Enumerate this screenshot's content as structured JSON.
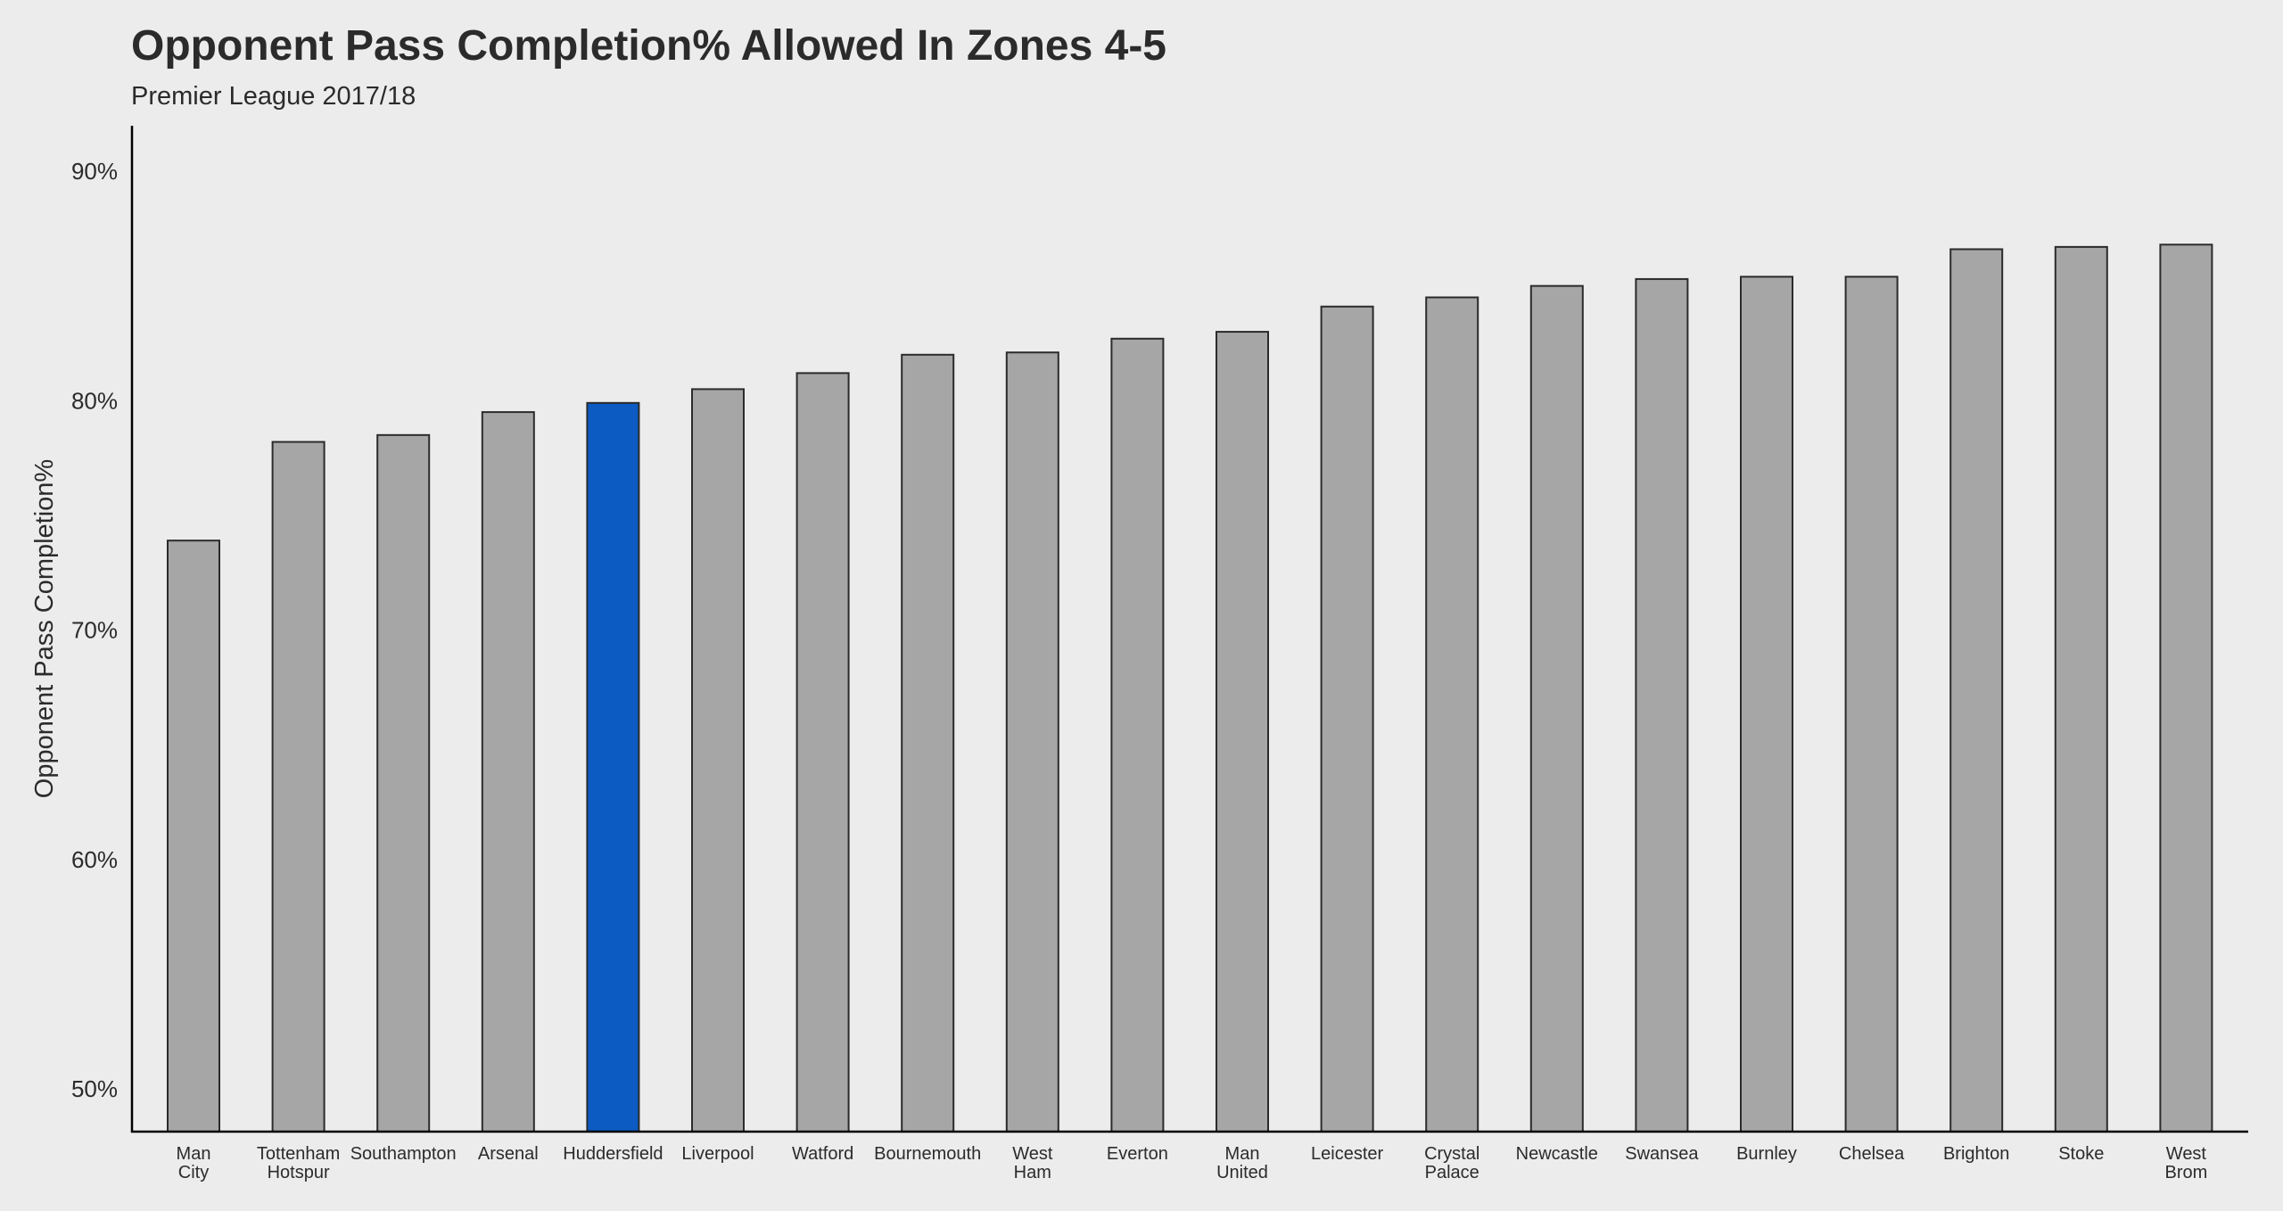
{
  "chart_data": {
    "type": "bar",
    "title": "Opponent Pass Completion% Allowed In Zones 4-5",
    "subtitle": "Premier League 2017/18",
    "xlabel": "",
    "ylabel": "Opponent Pass Completion%",
    "ylim": [
      48,
      92
    ],
    "yticks": [
      50,
      60,
      70,
      80,
      90
    ],
    "ytick_labels": [
      "50%",
      "60%",
      "70%",
      "80%",
      "90%"
    ],
    "grid": false,
    "categories": [
      [
        "Man",
        "City"
      ],
      [
        "Tottenham",
        "Hotspur"
      ],
      [
        "Southampton"
      ],
      [
        "Arsenal"
      ],
      [
        "Huddersfield"
      ],
      [
        "Liverpool"
      ],
      [
        "Watford"
      ],
      [
        "Bournemouth"
      ],
      [
        "West",
        "Ham"
      ],
      [
        "Everton"
      ],
      [
        "Man",
        "United"
      ],
      [
        "Leicester"
      ],
      [
        "Crystal",
        "Palace"
      ],
      [
        "Newcastle"
      ],
      [
        "Swansea"
      ],
      [
        "Burnley"
      ],
      [
        "Chelsea"
      ],
      [
        "Brighton"
      ],
      [
        "Stoke"
      ],
      [
        "West",
        "Brom"
      ]
    ],
    "values": [
      73.9,
      78.2,
      78.5,
      79.5,
      79.9,
      80.5,
      81.2,
      82.0,
      82.1,
      82.7,
      83.0,
      84.1,
      84.5,
      85.0,
      85.3,
      85.4,
      85.4,
      86.6,
      86.7,
      86.8
    ],
    "highlight": "Huddersfield",
    "colors": {
      "bar": "#a6a6a6",
      "highlight": "#0b5bc2",
      "bar_stroke": "#2b2b2b",
      "background": "#ececec",
      "axis": "#000000"
    }
  }
}
